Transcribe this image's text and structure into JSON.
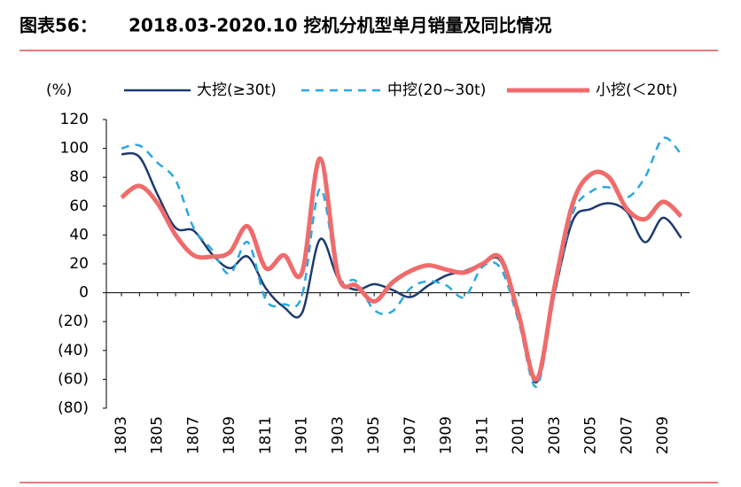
{
  "chart_data": {
    "type": "line",
    "figure_label": "图表56：",
    "title": "2018.03-2020.10 挖机分机型单月销量及同比情况",
    "y_axis_label": "(%)",
    "categories": [
      "1803",
      null,
      "1805",
      null,
      "1807",
      null,
      "1809",
      null,
      "1811",
      null,
      "1901",
      null,
      "1903",
      null,
      "1905",
      null,
      "1907",
      null,
      "1909",
      null,
      "1911",
      null,
      "2001",
      null,
      "2003",
      null,
      "2005",
      null,
      "2007",
      null,
      "2009",
      null
    ],
    "series": [
      {
        "name": "大挖(≥30t)",
        "color": "#1c3a70",
        "style": "solid",
        "values": [
          96,
          94,
          68,
          45,
          43,
          27,
          17,
          25,
          3,
          -10,
          -14,
          37,
          10,
          2,
          6,
          2,
          -3,
          5,
          12,
          15,
          20,
          22,
          -18,
          -62,
          0,
          50,
          58,
          62,
          56,
          35,
          52,
          38
        ]
      },
      {
        "name": "中挖(20~30t)",
        "color": "#2aa8e0",
        "style": "dashed",
        "values": [
          100,
          102,
          90,
          78,
          45,
          30,
          13,
          35,
          -5,
          -8,
          -2,
          72,
          12,
          8,
          -12,
          -13,
          3,
          8,
          5,
          -3,
          18,
          17,
          -20,
          -65,
          0,
          55,
          70,
          73,
          66,
          80,
          107,
          96
        ]
      },
      {
        "name": "小挖(＜20t)",
        "color": "#f06b6b",
        "style": "thick",
        "values": [
          66,
          74,
          62,
          40,
          26,
          25,
          28,
          46,
          17,
          26,
          14,
          93,
          12,
          5,
          -6,
          7,
          15,
          19,
          16,
          14,
          20,
          24,
          -15,
          -60,
          5,
          62,
          82,
          80,
          58,
          51,
          63,
          53
        ]
      }
    ],
    "ylim": [
      -80,
      120
    ],
    "yticks": [
      {
        "value": -80,
        "label": "(80)"
      },
      {
        "value": -60,
        "label": "(60)"
      },
      {
        "value": -40,
        "label": "(40)"
      },
      {
        "value": -20,
        "label": "(20)"
      },
      0,
      20,
      40,
      60,
      80,
      100,
      120
    ],
    "grid": false,
    "legend": "top"
  }
}
